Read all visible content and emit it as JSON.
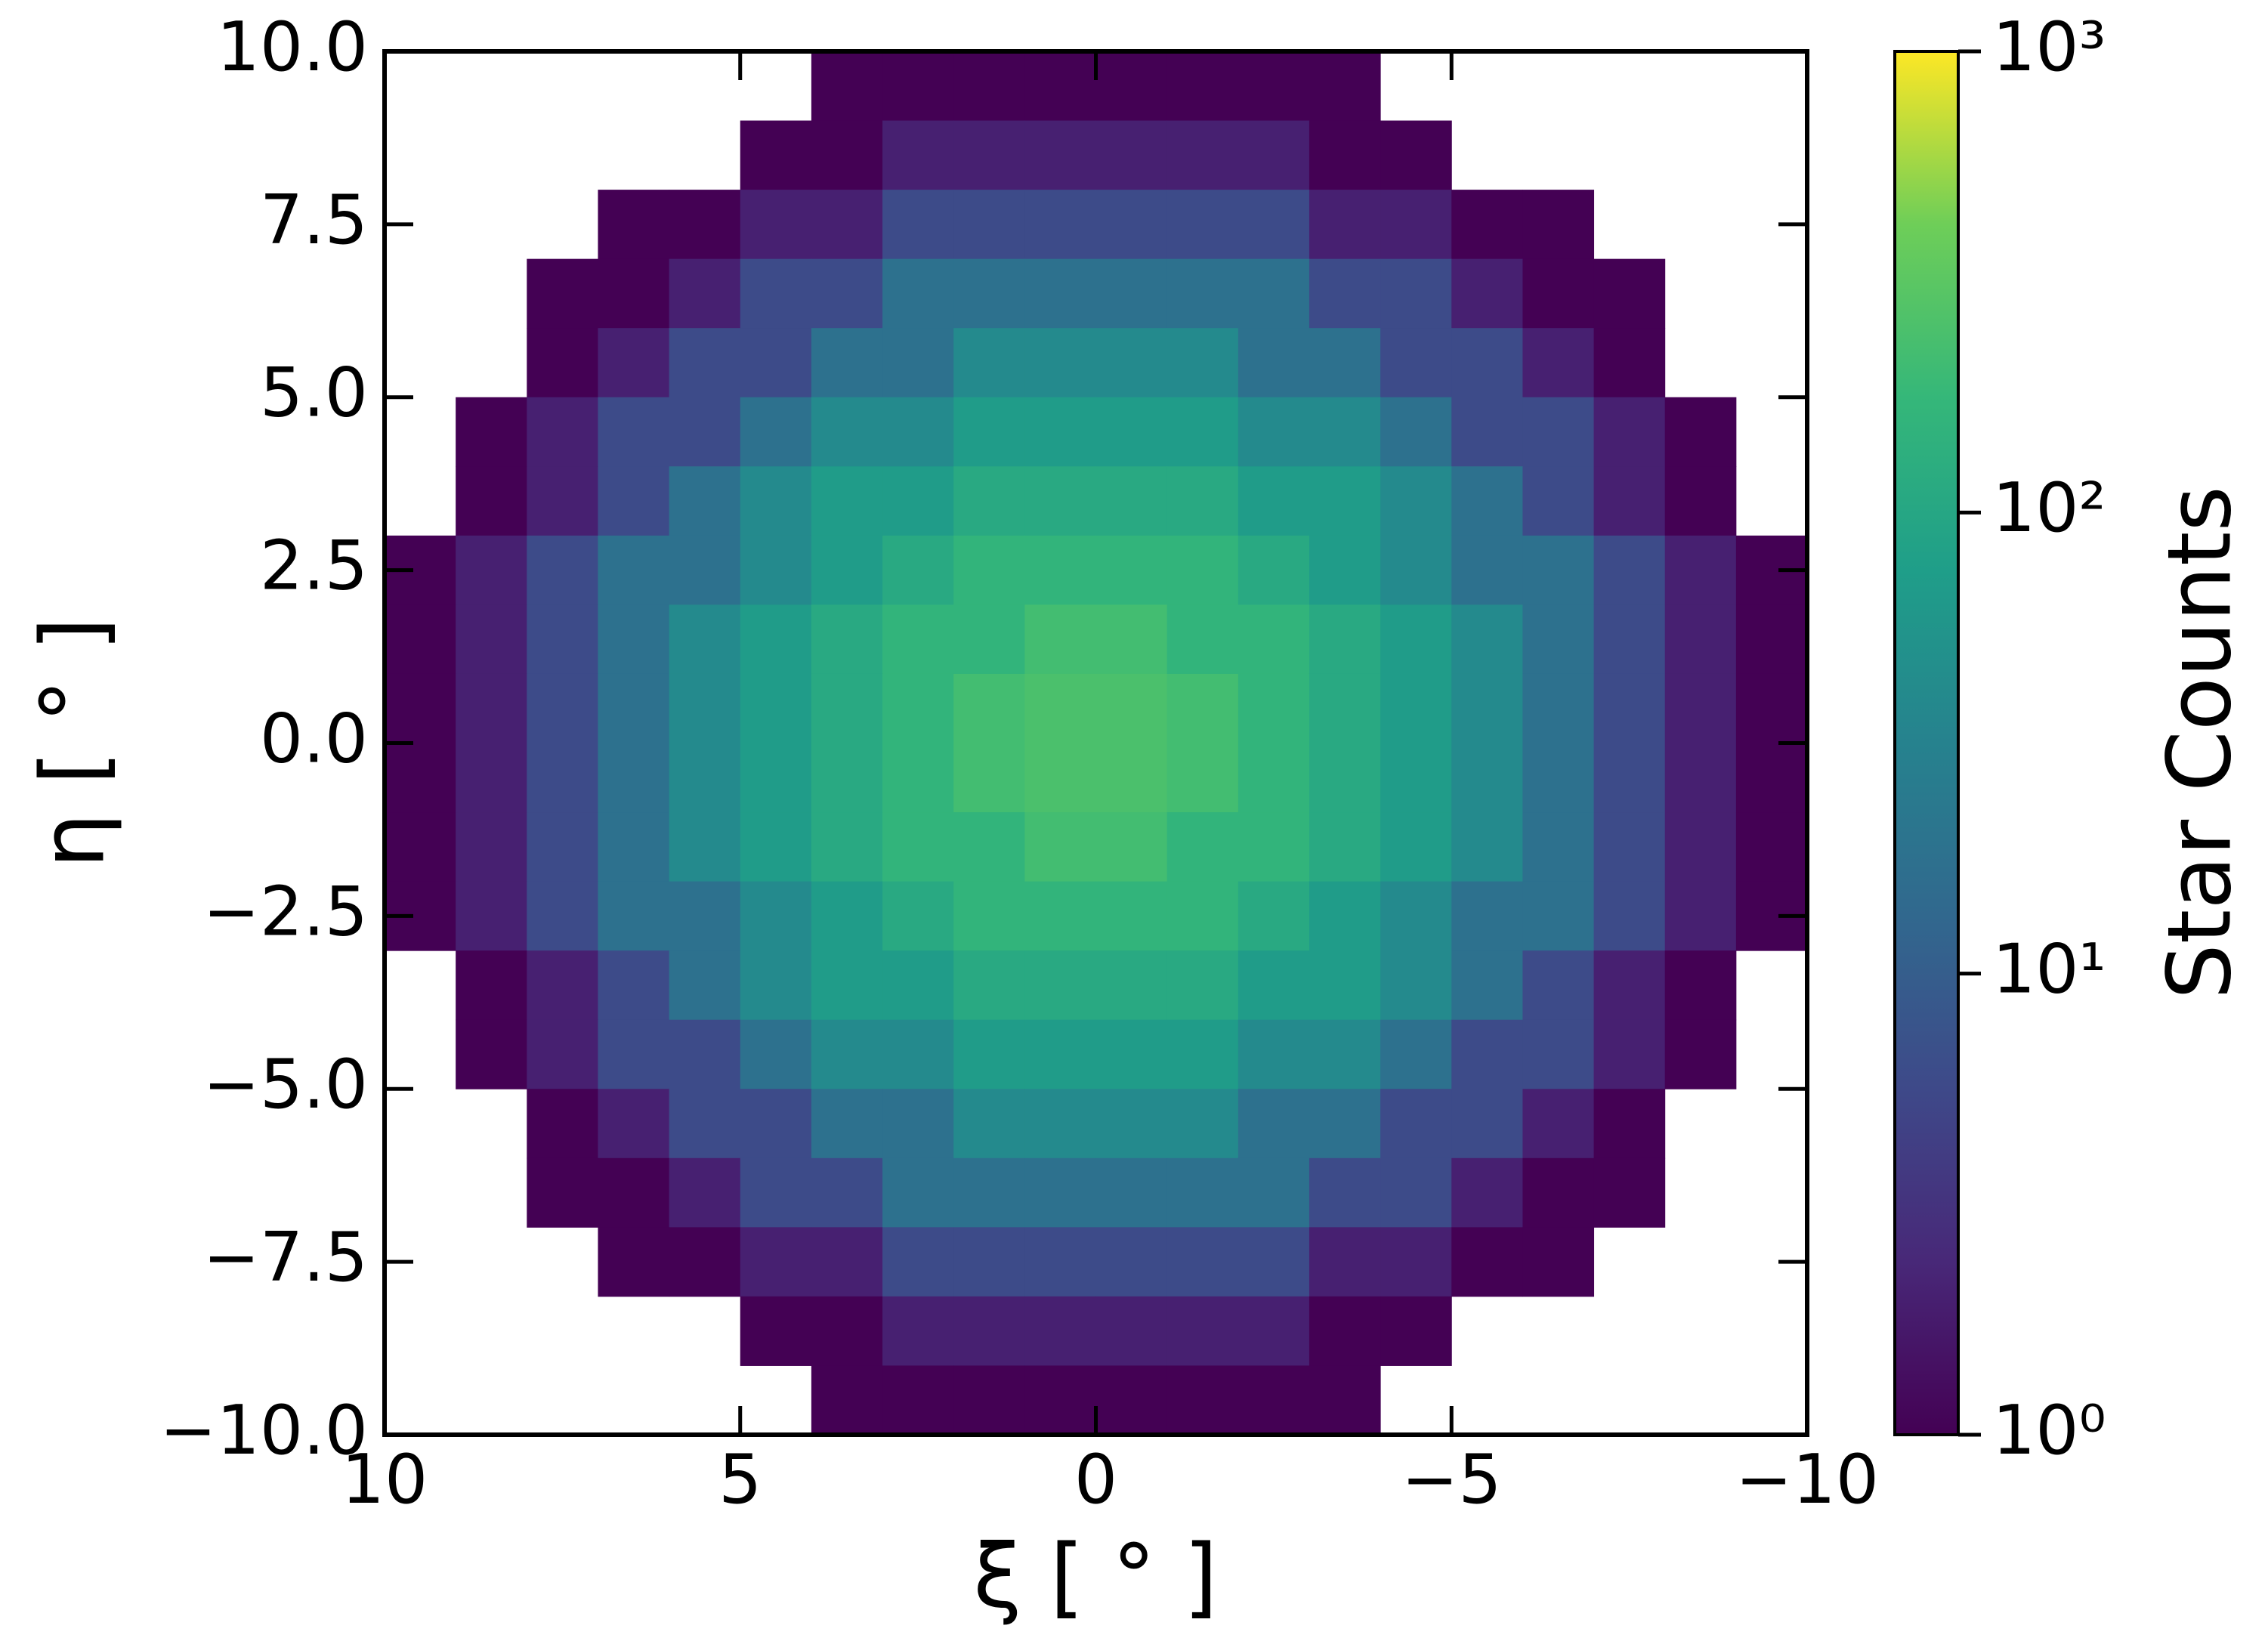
{
  "chart_data": {
    "type": "heatmap",
    "xlabel": "ξ [ ° ]",
    "ylabel": "η [ ° ]",
    "xlim": [
      10,
      -10
    ],
    "ylim": [
      -10,
      10
    ],
    "x_bins": [
      10,
      9,
      8,
      7,
      6,
      5,
      4,
      3,
      2,
      1,
      0,
      -1,
      -2,
      -3,
      -4,
      -5,
      -6,
      -7,
      -8,
      -9,
      -10
    ],
    "y_bins": [
      10,
      9,
      8,
      7,
      6,
      5,
      4,
      3,
      2,
      1,
      0,
      -1,
      -2,
      -3,
      -4,
      -5,
      -6,
      -7,
      -8,
      -9,
      -10
    ],
    "xticks": [
      10,
      5,
      0,
      {
        "value": -5,
        "label": "−5"
      },
      {
        "value": -10,
        "label": "−10"
      }
    ],
    "yticks": [
      {
        "value": 10,
        "label": "10.0"
      },
      7.5,
      {
        "value": 5,
        "label": "5.0"
      },
      2.5,
      {
        "value": 0,
        "label": "0.0"
      },
      {
        "value": -2.5,
        "label": "−2.5"
      },
      {
        "value": -5,
        "label": "−5.0"
      },
      {
        "value": -7.5,
        "label": "−7.5"
      },
      {
        "value": -10,
        "label": "−10.0"
      }
    ],
    "colormap": "viridis",
    "colorbar": {
      "label": "Star Counts",
      "log": true,
      "lim": [
        1,
        1000
      ],
      "ticks": [
        {
          "value": 1,
          "label": "10⁰"
        },
        {
          "value": 10,
          "label": "10¹"
        },
        {
          "value": 100,
          "label": "10²"
        },
        {
          "value": 1000,
          "label": "10³"
        }
      ]
    },
    "values": [
      [
        null,
        null,
        null,
        null,
        null,
        null,
        1,
        1,
        1,
        1,
        1,
        1,
        1,
        1,
        null,
        null,
        null,
        null,
        null,
        null
      ],
      [
        null,
        null,
        null,
        null,
        null,
        1,
        1,
        2,
        2,
        2,
        2,
        2,
        2,
        1,
        1,
        null,
        null,
        null,
        null,
        null
      ],
      [
        null,
        null,
        null,
        1,
        1,
        2,
        2,
        6,
        6,
        6,
        6,
        6,
        6,
        2,
        2,
        1,
        1,
        null,
        null,
        null
      ],
      [
        null,
        null,
        1,
        1,
        2,
        6,
        6,
        18,
        18,
        18,
        18,
        18,
        18,
        6,
        6,
        2,
        1,
        1,
        null,
        null
      ],
      [
        null,
        null,
        1,
        2,
        6,
        6,
        18,
        18,
        40,
        40,
        40,
        40,
        18,
        18,
        6,
        6,
        2,
        1,
        null,
        null
      ],
      [
        null,
        1,
        2,
        6,
        6,
        18,
        40,
        40,
        70,
        70,
        70,
        70,
        40,
        40,
        18,
        6,
        6,
        2,
        1,
        null
      ],
      [
        null,
        1,
        2,
        6,
        18,
        40,
        70,
        70,
        110,
        110,
        110,
        110,
        70,
        70,
        40,
        18,
        6,
        2,
        1,
        null
      ],
      [
        1,
        2,
        6,
        18,
        18,
        40,
        70,
        110,
        160,
        160,
        160,
        160,
        110,
        70,
        40,
        18,
        18,
        6,
        2,
        1
      ],
      [
        1,
        2,
        6,
        18,
        40,
        70,
        110,
        160,
        160,
        220,
        220,
        160,
        160,
        110,
        70,
        40,
        18,
        6,
        2,
        1
      ],
      [
        1,
        2,
        6,
        18,
        40,
        70,
        110,
        160,
        220,
        250,
        250,
        220,
        160,
        110,
        70,
        40,
        18,
        6,
        2,
        1
      ],
      [
        1,
        2,
        6,
        18,
        40,
        70,
        110,
        160,
        220,
        250,
        250,
        220,
        160,
        110,
        70,
        40,
        18,
        6,
        2,
        1
      ],
      [
        1,
        2,
        6,
        18,
        40,
        70,
        110,
        160,
        160,
        220,
        220,
        160,
        160,
        110,
        70,
        40,
        18,
        6,
        2,
        1
      ],
      [
        1,
        2,
        6,
        18,
        18,
        40,
        70,
        110,
        160,
        160,
        160,
        160,
        110,
        70,
        40,
        18,
        18,
        6,
        2,
        1
      ],
      [
        null,
        1,
        2,
        6,
        18,
        40,
        70,
        70,
        110,
        110,
        110,
        110,
        70,
        70,
        40,
        18,
        6,
        2,
        1,
        null
      ],
      [
        null,
        1,
        2,
        6,
        6,
        18,
        40,
        40,
        70,
        70,
        70,
        70,
        40,
        40,
        18,
        6,
        6,
        2,
        1,
        null
      ],
      [
        null,
        null,
        1,
        2,
        6,
        6,
        18,
        18,
        40,
        40,
        40,
        40,
        18,
        18,
        6,
        6,
        2,
        1,
        null,
        null
      ],
      [
        null,
        null,
        1,
        1,
        2,
        6,
        6,
        18,
        18,
        18,
        18,
        18,
        18,
        6,
        6,
        2,
        1,
        1,
        null,
        null
      ],
      [
        null,
        null,
        null,
        1,
        1,
        2,
        2,
        6,
        6,
        6,
        6,
        6,
        6,
        2,
        2,
        1,
        1,
        null,
        null,
        null
      ],
      [
        null,
        null,
        null,
        null,
        null,
        1,
        1,
        2,
        2,
        2,
        2,
        2,
        2,
        1,
        1,
        null,
        null,
        null,
        null,
        null
      ],
      [
        null,
        null,
        null,
        null,
        null,
        null,
        1,
        1,
        1,
        1,
        1,
        1,
        1,
        1,
        null,
        null,
        null,
        null,
        null,
        null
      ]
    ]
  }
}
